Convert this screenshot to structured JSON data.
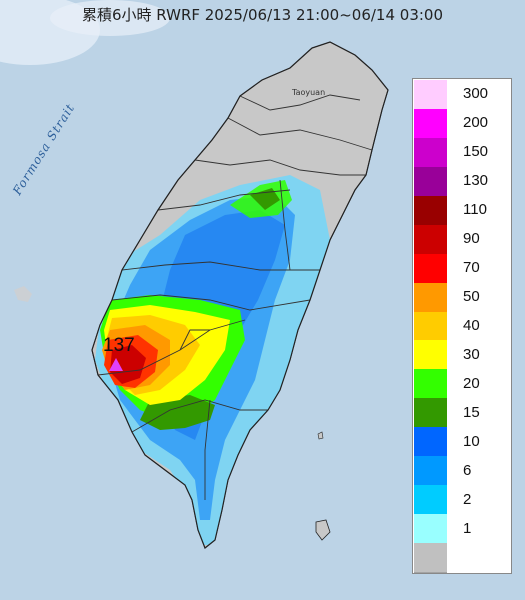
{
  "header": {
    "title": "累積6小時 RWRF 2025/06/13 21:00~06/14 03:00"
  },
  "map": {
    "strait_label": "Formosa Strait",
    "city_label": "Taoyuan",
    "max_value_label": "137",
    "colors": {
      "sea": "#bcd3e6",
      "land_none": "#c8c8c8",
      "border": "#333333"
    }
  },
  "legend": {
    "entries": [
      {
        "label": "300",
        "color": "#ffccff"
      },
      {
        "label": "200",
        "color": "#ff00ff"
      },
      {
        "label": "150",
        "color": "#cc00cc"
      },
      {
        "label": "130",
        "color": "#990099"
      },
      {
        "label": "110",
        "color": "#990000"
      },
      {
        "label": "90",
        "color": "#cc0000"
      },
      {
        "label": "70",
        "color": "#ff0000"
      },
      {
        "label": "50",
        "color": "#ff9900"
      },
      {
        "label": "40",
        "color": "#ffcc00"
      },
      {
        "label": "30",
        "color": "#ffff00"
      },
      {
        "label": "20",
        "color": "#33ff00"
      },
      {
        "label": "15",
        "color": "#339900"
      },
      {
        "label": "10",
        "color": "#0066ff"
      },
      {
        "label": "6",
        "color": "#0099ff"
      },
      {
        "label": "2",
        "color": "#00ccff"
      },
      {
        "label": "1",
        "color": "#99ffff"
      },
      {
        "label": "",
        "color": "#c0c0c0"
      }
    ]
  }
}
